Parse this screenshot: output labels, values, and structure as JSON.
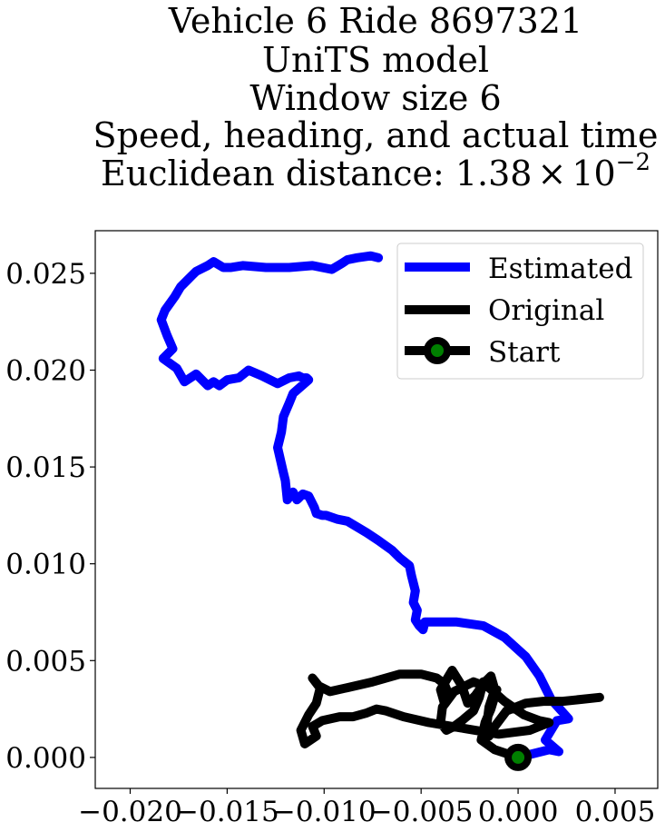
{
  "chart_data": {
    "type": "line",
    "title_lines": [
      "Vehicle 6 Ride 8697321",
      "UniTS model",
      "Window size 6",
      "Speed, heading, and actual time"
    ],
    "title_distance": {
      "prefix": "Euclidean distance: ",
      "mantissa": "1.38",
      "times": "×",
      "base": "10",
      "exponent": "−2"
    },
    "xlim": [
      -0.0218,
      0.0072
    ],
    "ylim": [
      -0.0016,
      0.0272
    ],
    "x_ticks": [
      -0.02,
      -0.015,
      -0.01,
      -0.005,
      0.0,
      0.005
    ],
    "x_tick_labels": [
      "−0.020",
      "−0.015",
      "−0.010",
      "−0.005",
      "0.000",
      "0.005"
    ],
    "y_ticks": [
      0.0,
      0.005,
      0.01,
      0.015,
      0.02,
      0.025
    ],
    "y_tick_labels": [
      "0.000",
      "0.005",
      "0.010",
      "0.015",
      "0.020",
      "0.025"
    ],
    "grid": false,
    "legend_position": "top-right",
    "legend": [
      "Estimated",
      "Original",
      "Start"
    ],
    "series": [
      {
        "name": "Estimated",
        "color": "#0000ff",
        "x": [
          0.0,
          0.0016,
          0.0021,
          0.0014,
          0.002,
          0.0026,
          0.0017,
          0.0011,
          0.0004,
          -0.0007,
          -0.0018,
          -0.0032,
          -0.0048,
          -0.0049,
          -0.0051,
          -0.0053,
          -0.0052,
          -0.0054,
          -0.0053,
          -0.0055,
          -0.0056,
          -0.0061,
          -0.0065,
          -0.0072,
          -0.0078,
          -0.0083,
          -0.0088,
          -0.0093,
          -0.0099,
          -0.0101,
          -0.0104,
          -0.0105,
          -0.0108,
          -0.0111,
          -0.0113,
          -0.0114,
          -0.0116,
          -0.0119,
          -0.012,
          -0.0121,
          -0.0124,
          -0.0122,
          -0.0121,
          -0.0118,
          -0.0116,
          -0.0108,
          -0.0109,
          -0.011,
          -0.0109,
          -0.0113,
          -0.0118,
          -0.0124,
          -0.0132,
          -0.0139,
          -0.0144,
          -0.015,
          -0.0154,
          -0.0157,
          -0.016,
          -0.0166,
          -0.0172,
          -0.0176,
          -0.0183,
          -0.0178,
          -0.0181,
          -0.0184,
          -0.0182,
          -0.0177,
          -0.0174,
          -0.017,
          -0.0168,
          -0.0166,
          -0.016,
          -0.0157,
          -0.0152,
          -0.0148,
          -0.0142,
          -0.013,
          -0.0118,
          -0.0106,
          -0.0096,
          -0.0091,
          -0.0088,
          -0.0083,
          -0.0076,
          -0.0072
        ],
        "y": [
          0.0,
          0.0004,
          0.0003,
          0.0009,
          0.0019,
          0.002,
          0.003,
          0.0042,
          0.0052,
          0.0062,
          0.0068,
          0.007,
          0.007,
          0.0066,
          0.0068,
          0.0071,
          0.0076,
          0.008,
          0.0086,
          0.0094,
          0.0099,
          0.0103,
          0.0107,
          0.0112,
          0.0116,
          0.0119,
          0.0122,
          0.0123,
          0.0125,
          0.0125,
          0.0126,
          0.0129,
          0.0135,
          0.0136,
          0.0134,
          0.0133,
          0.0137,
          0.0133,
          0.0143,
          0.0147,
          0.016,
          0.0168,
          0.0176,
          0.0183,
          0.0188,
          0.0195,
          0.0196,
          0.0196,
          0.0195,
          0.0197,
          0.0196,
          0.0193,
          0.0197,
          0.02,
          0.0196,
          0.0195,
          0.0192,
          0.0194,
          0.0192,
          0.0198,
          0.0194,
          0.0201,
          0.0206,
          0.0211,
          0.0218,
          0.0226,
          0.0231,
          0.0238,
          0.0243,
          0.0247,
          0.0249,
          0.0251,
          0.0254,
          0.0256,
          0.0253,
          0.0253,
          0.0254,
          0.0253,
          0.0253,
          0.0254,
          0.0252,
          0.0255,
          0.0257,
          0.0258,
          0.0259,
          0.0258
        ]
      },
      {
        "name": "Original",
        "color": "#000000",
        "x": [
          0.0,
          -0.0012,
          -0.0019,
          -0.0017,
          -0.0014,
          -0.0011,
          -0.0018,
          -0.002,
          -0.0023,
          -0.0029,
          -0.0033,
          -0.0037,
          -0.004,
          -0.0039,
          -0.0033,
          -0.0023,
          -0.0015,
          -0.0007,
          0.0003,
          0.0011,
          0.0016,
          0.0006,
          -0.001,
          -0.0028,
          -0.0046,
          -0.0059,
          -0.0068,
          -0.0073,
          -0.0078,
          -0.0085,
          -0.0092,
          -0.0101,
          -0.0106,
          -0.0104,
          -0.011,
          -0.0112,
          -0.0108,
          -0.0104,
          -0.0102,
          -0.0106,
          -0.0103,
          -0.0097,
          -0.0088,
          -0.0075,
          -0.0061,
          -0.005,
          -0.0042,
          -0.0038,
          -0.0036,
          -0.0038,
          -0.004,
          -0.0034,
          -0.0029,
          -0.0026,
          -0.0022,
          -0.0017,
          -0.0014,
          -0.0012,
          -0.0015,
          -0.0016,
          -0.0015,
          -0.0012,
          -0.0006,
          0.0004,
          0.0013,
          0.0023,
          0.0033,
          0.0042
        ],
        "y": [
          0.0,
          0.0004,
          0.0009,
          0.0018,
          0.0025,
          0.0035,
          0.0039,
          0.0031,
          0.0024,
          0.0019,
          0.0016,
          0.0014,
          0.0018,
          0.0026,
          0.0034,
          0.0039,
          0.0036,
          0.0029,
          0.0022,
          0.0019,
          0.0018,
          0.0014,
          0.0012,
          0.0015,
          0.0018,
          0.0021,
          0.0024,
          0.0025,
          0.0023,
          0.0021,
          0.0021,
          0.0019,
          0.0016,
          0.0011,
          0.0007,
          0.0014,
          0.0022,
          0.0028,
          0.0036,
          0.0041,
          0.0037,
          0.0034,
          0.0036,
          0.0039,
          0.0043,
          0.0043,
          0.0041,
          0.0038,
          0.0033,
          0.0028,
          0.0035,
          0.0045,
          0.0037,
          0.0028,
          0.0032,
          0.0039,
          0.0042,
          0.0035,
          0.0026,
          0.0018,
          0.0011,
          0.0016,
          0.0024,
          0.0028,
          0.0029,
          0.0029,
          0.003,
          0.0031
        ]
      },
      {
        "name": "Start",
        "color": "#000000",
        "marker_face_color": "#008000",
        "x": [
          0.0
        ],
        "y": [
          0.0
        ]
      }
    ]
  }
}
